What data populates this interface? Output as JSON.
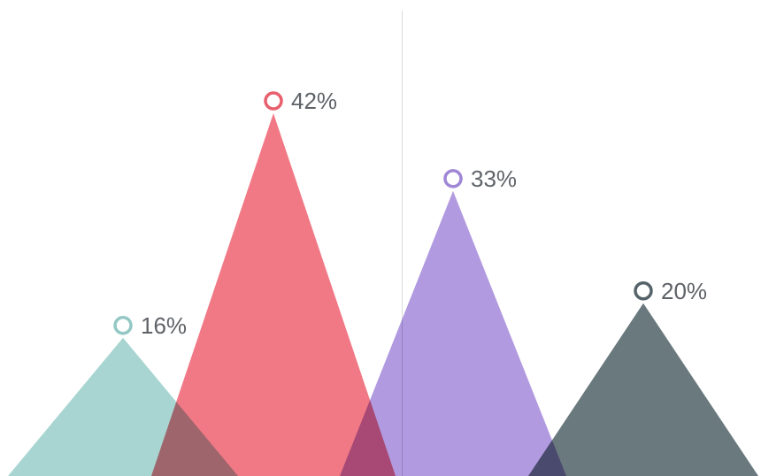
{
  "chart_data": {
    "type": "bar",
    "style": "overlapping-triangles",
    "categories": [
      "",
      "",
      "",
      ""
    ],
    "values": [
      16,
      42,
      33,
      20
    ],
    "value_labels": [
      "16%",
      "42%",
      "33%",
      "20%"
    ],
    "ylim": [
      0,
      45
    ],
    "grid": false,
    "series_colors": [
      "#9fd0cc",
      "#ef6a78",
      "#a88fdc",
      "#5a6a70"
    ],
    "marker_colors": [
      "#93c8c4",
      "#e8606e",
      "#9f86d6",
      "#55636a"
    ]
  }
}
